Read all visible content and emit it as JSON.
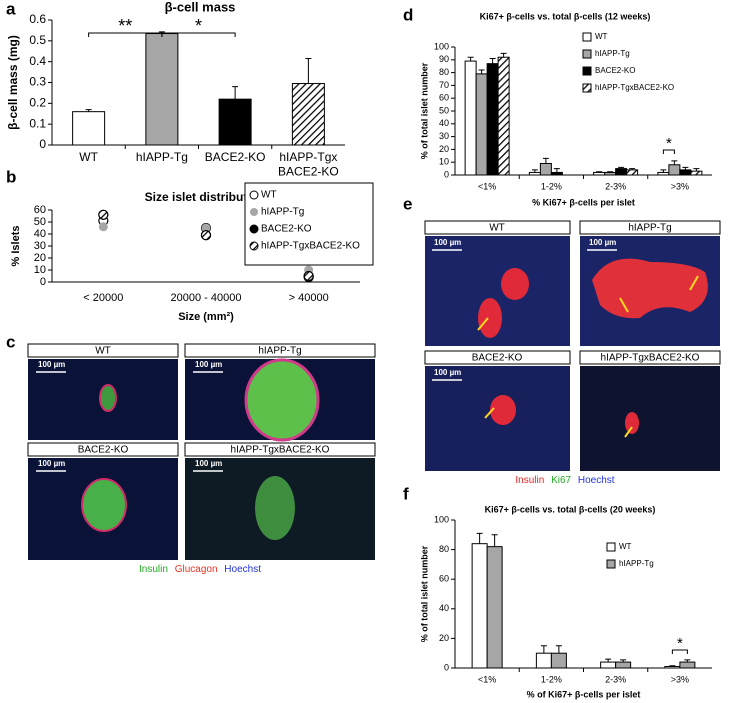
{
  "panel_letters": [
    "a",
    "b",
    "c",
    "d",
    "e",
    "f"
  ],
  "chart_data": [
    {
      "type": "bar",
      "title": "β-cell mass",
      "ylabel": "β-cell mass (mg)",
      "categories": [
        "WT",
        "hIAPP-Tg",
        "BACE2-KO",
        "hIAPP-Tgx BACE2-KO"
      ],
      "values": [
        0.16,
        0.535,
        0.22,
        0.295
      ],
      "errors": [
        0.01,
        0.008,
        0.06,
        0.12
      ],
      "colors": [
        "#ffffff",
        "#a6a6a6",
        "#000000",
        "#ffffff"
      ],
      "hatch": [
        false,
        false,
        false,
        true
      ],
      "ylim": [
        0,
        0.6
      ],
      "yticks": [
        0,
        0.1,
        0.2,
        0.3,
        0.4,
        0.5,
        0.6
      ],
      "annotations": [
        "**",
        "*"
      ]
    },
    {
      "type": "scatter",
      "title": "Size islet distribution",
      "ylabel": "% Islets",
      "xlabel": "Size (mm²)",
      "categories": [
        "< 20000",
        "20000 - 40000",
        "> 40000"
      ],
      "series": [
        {
          "name": "WT",
          "color": "#ffffff",
          "values": [
            51,
            45,
            5
          ]
        },
        {
          "name": "hIAPP-Tg",
          "color": "#a6a6a6",
          "values": [
            46,
            45,
            10
          ]
        },
        {
          "name": "BACE2-KO",
          "color": "#000000",
          "values": [
            56,
            39,
            4
          ]
        },
        {
          "name": "hIAPP-TgxBACE2-KO",
          "color": "#ffffff",
          "hatch": true,
          "values": [
            56,
            39,
            5
          ]
        }
      ],
      "ylim": [
        0,
        60
      ],
      "yticks": [
        0,
        10,
        20,
        30,
        40,
        50,
        60
      ],
      "legend": "upper right"
    },
    {
      "type": "bar",
      "title": "Ki67+ β-cells vs. total β-cells (12 weeks)",
      "ylabel": "% of total islet number",
      "xlabel": "% Ki67+ β-cells per islet",
      "categories": [
        "<1%",
        "1-2%",
        "2-3%",
        ">3%"
      ],
      "series": [
        {
          "name": "WT",
          "color": "#ffffff",
          "values": [
            89,
            2,
            2,
            2
          ],
          "errors": [
            3,
            2,
            0.5,
            2
          ]
        },
        {
          "name": "hIAPP-Tg",
          "color": "#a6a6a6",
          "values": [
            79,
            9,
            2,
            8
          ],
          "errors": [
            3,
            4,
            0.5,
            3
          ]
        },
        {
          "name": "BACE2-KO",
          "color": "#000000",
          "values": [
            87,
            2,
            5,
            4
          ],
          "errors": [
            4,
            3,
            1,
            2
          ]
        },
        {
          "name": "hIAPP-TgxBACE2-KO",
          "color": "#ffffff",
          "hatch": true,
          "values": [
            92,
            0,
            4,
            3
          ],
          "errors": [
            3,
            0,
            1,
            2
          ]
        }
      ],
      "ylim": [
        0,
        100
      ],
      "yticks": [
        0,
        10,
        20,
        30,
        40,
        50,
        60,
        70,
        80,
        90,
        100
      ],
      "annotations": [
        "*"
      ],
      "legend": "upper right"
    },
    {
      "type": "bar",
      "title": "Ki67+ β-cells vs. total β-cells (20 weeks)",
      "ylabel": "% of total islet number",
      "xlabel": "% of Ki67+ β-cells per islet",
      "categories": [
        "<1%",
        "1-2%",
        "2-3%",
        ">3%"
      ],
      "series": [
        {
          "name": "WT",
          "color": "#ffffff",
          "values": [
            84,
            10,
            4,
            1
          ],
          "errors": [
            7,
            5,
            2,
            0.5
          ]
        },
        {
          "name": "hIAPP-Tg",
          "color": "#a6a6a6",
          "values": [
            82,
            10,
            4,
            4
          ],
          "errors": [
            8,
            5,
            1.5,
            1.5
          ]
        }
      ],
      "ylim": [
        0,
        100
      ],
      "yticks": [
        0,
        20,
        40,
        60,
        80,
        100
      ],
      "annotations": [
        "*"
      ],
      "legend": "upper right"
    }
  ],
  "micrographs": [
    {
      "labels": [
        "WT",
        "hIAPP-Tg",
        "BACE2-KO",
        "hIAPP-TgxBACE2-KO"
      ],
      "scale_bar": "100 µm",
      "stain_legend": [
        {
          "text": "Insulin",
          "color": "#22aa22"
        },
        {
          "text": "Glucagon",
          "color": "#ee3322"
        },
        {
          "text": "Hoechst",
          "color": "#2233dd"
        }
      ]
    },
    {
      "labels": [
        "WT",
        "hIAPP-Tg",
        "BACE2-KO",
        "hIAPP-TgxBACE2-KO"
      ],
      "scale_bar": "100 µm",
      "stain_legend": [
        {
          "text": "Insulin",
          "color": "#ee2222"
        },
        {
          "text": "Ki67",
          "color": "#22aa22"
        },
        {
          "text": "Hoechst",
          "color": "#2233dd"
        }
      ]
    }
  ]
}
